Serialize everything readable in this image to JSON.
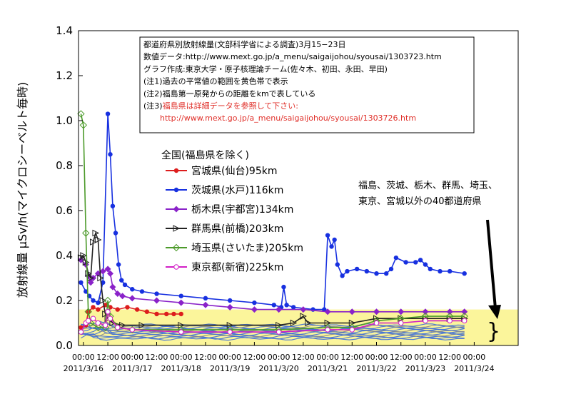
{
  "chart_data": {
    "type": "line",
    "ylabel": "放射線量 μSv/h(マイクロシーベルト毎時)",
    "ylim": [
      0,
      1.4
    ],
    "yticks": [
      "0.0",
      "0.2",
      "0.4",
      "0.6",
      "0.8",
      "1.0",
      "1.2",
      "1.4"
    ],
    "xlim": [
      -0.1,
      8.9
    ],
    "time_ticks": [
      {
        "x": 0,
        "label": "00:00"
      },
      {
        "x": 0.5,
        "label": "12:00"
      },
      {
        "x": 1,
        "label": "00:00"
      },
      {
        "x": 1.5,
        "label": "12:00"
      },
      {
        "x": 2,
        "label": "00:00"
      },
      {
        "x": 2.5,
        "label": "12:00"
      },
      {
        "x": 3,
        "label": "00:00"
      },
      {
        "x": 3.5,
        "label": "12:00"
      },
      {
        "x": 4,
        "label": "00:00"
      },
      {
        "x": 4.5,
        "label": "12:00"
      },
      {
        "x": 5,
        "label": "00:00"
      },
      {
        "x": 5.5,
        "label": "12:00"
      },
      {
        "x": 6,
        "label": "00:00"
      },
      {
        "x": 6.5,
        "label": "12:00"
      },
      {
        "x": 7,
        "label": "00:00"
      },
      {
        "x": 7.5,
        "label": "12:00"
      },
      {
        "x": 8,
        "label": "00:00"
      }
    ],
    "date_ticks": [
      {
        "x": 0,
        "label": "2011/3/16"
      },
      {
        "x": 1,
        "label": "2011/3/17"
      },
      {
        "x": 2,
        "label": "2011/3/18"
      },
      {
        "x": 3,
        "label": "2011/3/19"
      },
      {
        "x": 4,
        "label": "2011/3/20"
      },
      {
        "x": 5,
        "label": "2011/3/21"
      },
      {
        "x": 6,
        "label": "2011/3/22"
      },
      {
        "x": 7,
        "label": "2011/3/23"
      },
      {
        "x": 8,
        "label": "2011/3/24"
      }
    ],
    "normal_band": {
      "y0": 0.0,
      "y1": 0.16,
      "color": "#fbf59b"
    },
    "notes": [
      {
        "text": "都道府県別放射線量(文部科学省による調査)3月15−23日",
        "red": false
      },
      {
        "text": "数値データ:http://www.mext.go.jp/a_menu/saigaijohou/syousai/1303723.htm",
        "red": false
      },
      {
        "text": "グラフ作成:東京大学・原子核理論チーム(佐々木、初田、永田、早田)",
        "red": false
      },
      {
        "text": "(注1)過去の平常値の範囲を黄色帯で表示",
        "red": false
      },
      {
        "text": "(注2)福島第一原発からの距離をkmで表している",
        "red": false
      },
      {
        "text": "(注3)福島県は詳細データを参照して下さい:",
        "red": false,
        "red_part": "福島県は詳細データを参照して下さい:",
        "plain_part": "(注3)"
      },
      {
        "text": "http://www.mext.go.jp/a_menu/saigaijohou/syousai/1303726.htm",
        "red": true
      }
    ],
    "legend_title": "全国(福島県を除く)",
    "callout": [
      "福島、茨城、栃木、群馬、埼玉、",
      "東京、宮城以外の40都道府県"
    ],
    "series": [
      {
        "name": "宮城県(仙台)95km",
        "color": "#dd1d1d",
        "marker": "circle",
        "points": [
          [
            -0.05,
            0.08
          ],
          [
            0.05,
            0.09
          ],
          [
            0.1,
            0.15
          ],
          [
            0.2,
            0.17
          ],
          [
            0.3,
            0.16
          ],
          [
            0.45,
            0.18
          ],
          [
            0.55,
            0.17
          ],
          [
            0.7,
            0.16
          ],
          [
            0.9,
            0.17
          ],
          [
            1.1,
            0.16
          ],
          [
            1.3,
            0.15
          ],
          [
            1.5,
            0.14
          ],
          [
            1.7,
            0.14
          ],
          [
            1.85,
            0.14
          ],
          [
            2.0,
            0.14
          ]
        ]
      },
      {
        "name": "茨城県(水戸)116km",
        "color": "#1730e0",
        "marker": "circle",
        "points": [
          [
            -0.05,
            0.28
          ],
          [
            0.05,
            0.24
          ],
          [
            0.12,
            0.22
          ],
          [
            0.2,
            0.2
          ],
          [
            0.3,
            0.19
          ],
          [
            0.4,
            0.28
          ],
          [
            0.5,
            1.03
          ],
          [
            0.55,
            0.85
          ],
          [
            0.6,
            0.62
          ],
          [
            0.66,
            0.5
          ],
          [
            0.72,
            0.36
          ],
          [
            0.78,
            0.29
          ],
          [
            0.85,
            0.27
          ],
          [
            1.0,
            0.25
          ],
          [
            1.2,
            0.24
          ],
          [
            1.5,
            0.23
          ],
          [
            2.0,
            0.22
          ],
          [
            2.5,
            0.21
          ],
          [
            3.0,
            0.2
          ],
          [
            3.5,
            0.19
          ],
          [
            3.9,
            0.18
          ],
          [
            4.05,
            0.17
          ],
          [
            4.1,
            0.26
          ],
          [
            4.16,
            0.18
          ],
          [
            4.3,
            0.17
          ],
          [
            4.7,
            0.16
          ],
          [
            4.93,
            0.16
          ],
          [
            5.0,
            0.49
          ],
          [
            5.08,
            0.44
          ],
          [
            5.14,
            0.47
          ],
          [
            5.2,
            0.36
          ],
          [
            5.3,
            0.31
          ],
          [
            5.4,
            0.33
          ],
          [
            5.6,
            0.34
          ],
          [
            5.8,
            0.33
          ],
          [
            6.0,
            0.32
          ],
          [
            6.2,
            0.32
          ],
          [
            6.3,
            0.34
          ],
          [
            6.4,
            0.39
          ],
          [
            6.6,
            0.37
          ],
          [
            6.8,
            0.37
          ],
          [
            6.9,
            0.38
          ],
          [
            7.0,
            0.36
          ],
          [
            7.1,
            0.34
          ],
          [
            7.3,
            0.33
          ],
          [
            7.5,
            0.33
          ],
          [
            7.8,
            0.32
          ]
        ]
      },
      {
        "name": "栃木県(宇都宮)134km",
        "color": "#8a22c9",
        "marker": "diamond",
        "points": [
          [
            -0.05,
            0.38
          ],
          [
            0.05,
            0.36
          ],
          [
            0.1,
            0.31
          ],
          [
            0.15,
            0.28
          ],
          [
            0.2,
            0.3
          ],
          [
            0.3,
            0.32
          ],
          [
            0.4,
            0.33
          ],
          [
            0.5,
            0.34
          ],
          [
            0.55,
            0.32
          ],
          [
            0.6,
            0.26
          ],
          [
            0.7,
            0.23
          ],
          [
            0.8,
            0.22
          ],
          [
            1.0,
            0.21
          ],
          [
            1.5,
            0.2
          ],
          [
            2.0,
            0.19
          ],
          [
            2.5,
            0.18
          ],
          [
            3.0,
            0.17
          ],
          [
            3.5,
            0.16
          ],
          [
            4.0,
            0.16
          ],
          [
            4.5,
            0.16
          ],
          [
            5.0,
            0.15
          ],
          [
            5.5,
            0.15
          ],
          [
            6.0,
            0.15
          ],
          [
            6.5,
            0.15
          ],
          [
            7.0,
            0.15
          ],
          [
            7.5,
            0.15
          ],
          [
            7.8,
            0.15
          ]
        ]
      },
      {
        "name": "群馬県(前橋)203km",
        "color": "#222222",
        "marker": "triangle",
        "points": [
          [
            -0.05,
            0.39
          ],
          [
            0.0,
            0.4
          ],
          [
            0.05,
            0.37
          ],
          [
            0.1,
            0.32
          ],
          [
            0.15,
            0.3
          ],
          [
            0.2,
            0.46
          ],
          [
            0.25,
            0.5
          ],
          [
            0.3,
            0.47
          ],
          [
            0.35,
            0.3
          ],
          [
            0.4,
            0.2
          ],
          [
            0.45,
            0.14
          ],
          [
            0.5,
            0.12
          ],
          [
            0.6,
            0.1
          ],
          [
            0.8,
            0.09
          ],
          [
            1.2,
            0.09
          ],
          [
            2.0,
            0.09
          ],
          [
            3.0,
            0.09
          ],
          [
            4.0,
            0.09
          ],
          [
            4.3,
            0.1
          ],
          [
            4.5,
            0.13
          ],
          [
            4.6,
            0.1
          ],
          [
            5.0,
            0.1
          ],
          [
            5.5,
            0.1
          ],
          [
            6.0,
            0.12
          ],
          [
            6.5,
            0.12
          ],
          [
            7.0,
            0.12
          ],
          [
            7.5,
            0.12
          ],
          [
            7.8,
            0.12
          ]
        ]
      },
      {
        "name": "埼玉県(さいたま)205km",
        "color": "#4c9a2a",
        "marker": "diamond-open",
        "points": [
          [
            -0.05,
            1.03
          ],
          [
            0.0,
            0.98
          ],
          [
            0.05,
            0.5
          ],
          [
            0.1,
            0.15
          ],
          [
            0.15,
            0.1
          ],
          [
            0.3,
            0.08
          ],
          [
            0.45,
            0.08
          ],
          [
            0.5,
            0.2
          ],
          [
            0.55,
            0.13
          ],
          [
            0.7,
            0.08
          ],
          [
            1.0,
            0.07
          ],
          [
            2.0,
            0.07
          ],
          [
            3.0,
            0.07
          ],
          [
            4.0,
            0.07
          ],
          [
            5.0,
            0.08
          ],
          [
            5.5,
            0.08
          ],
          [
            6.0,
            0.11
          ],
          [
            6.5,
            0.12
          ],
          [
            7.0,
            0.13
          ],
          [
            7.5,
            0.13
          ],
          [
            7.8,
            0.13
          ]
        ]
      },
      {
        "name": "東京都(新宿)225km",
        "color": "#d21ec6",
        "marker": "circle-open",
        "points": [
          [
            -0.05,
            0.06
          ],
          [
            0.05,
            0.1
          ],
          [
            0.1,
            0.11
          ],
          [
            0.2,
            0.12
          ],
          [
            0.3,
            0.1
          ],
          [
            0.45,
            0.09
          ],
          [
            0.5,
            0.15
          ],
          [
            0.55,
            0.12
          ],
          [
            0.7,
            0.08
          ],
          [
            1.0,
            0.07
          ],
          [
            2.0,
            0.06
          ],
          [
            3.0,
            0.06
          ],
          [
            4.0,
            0.06
          ],
          [
            5.0,
            0.07
          ],
          [
            5.5,
            0.07
          ],
          [
            6.0,
            0.1
          ],
          [
            6.5,
            0.1
          ],
          [
            7.0,
            0.11
          ],
          [
            7.5,
            0.11
          ],
          [
            7.8,
            0.11
          ]
        ]
      }
    ],
    "background_series": {
      "color_blue": "#3e6fd8",
      "color_gray": "#8a8a8a",
      "base_levels": [
        0.03,
        0.035,
        0.04,
        0.045,
        0.05,
        0.055,
        0.06,
        0.065,
        0.07,
        0.075,
        0.08,
        0.085,
        0.09
      ],
      "x_end": 7.8
    }
  }
}
